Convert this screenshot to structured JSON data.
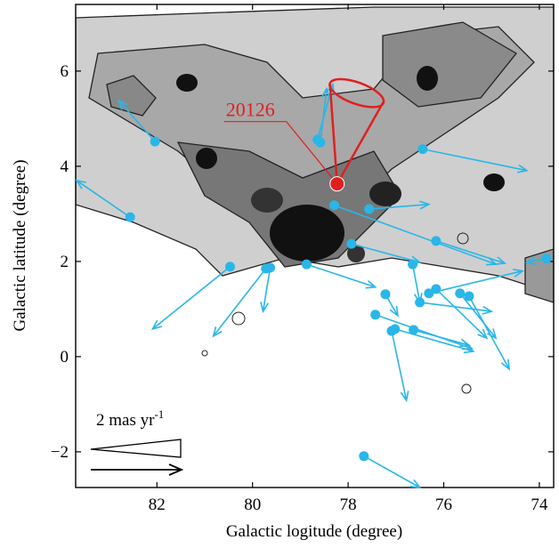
{
  "chart_data": {
    "type": "vector",
    "xlabel": "Galactic logitude (degree)",
    "ylabel": "Galactic latitude (degree)",
    "xlim": [
      83.7,
      73.7
    ],
    "ylim": [
      -2.75,
      7.4
    ],
    "xticks": [
      82,
      80,
      78,
      76,
      74
    ],
    "yticks": [
      {
        "value": -2,
        "label": "−2"
      },
      0,
      2,
      4,
      6
    ],
    "color": "#29b6e8",
    "series": [
      {
        "x": [
          82.04,
          82.56,
          80.47,
          79.72,
          79.63,
          78.64,
          78.58,
          78.87,
          78.29,
          77.93,
          77.56,
          76.44,
          76.16,
          76.65,
          77.22,
          77.43,
          77.09,
          77.02,
          76.63,
          76.5,
          76.16,
          75.47,
          75.66,
          76.31,
          73.85,
          77.67
        ],
        "y": [
          4.52,
          2.93,
          1.89,
          1.85,
          1.87,
          4.56,
          4.5,
          1.94,
          3.18,
          2.37,
          3.1,
          4.36,
          2.43,
          1.94,
          1.31,
          0.88,
          0.54,
          0.58,
          0.56,
          1.14,
          1.42,
          1.27,
          1.33,
          1.33,
          2.06,
          -2.09
        ],
        "x_end": [
          82.8,
          83.68,
          82.09,
          80.82,
          79.78,
          78.32,
          78.45,
          77.43,
          74.91,
          76.5,
          76.31,
          74.26,
          74.72,
          76.5,
          76.96,
          75.41,
          76.78,
          75.38,
          75.47,
          75.0,
          75.1,
          74.63,
          74.91,
          74.35,
          74.26,
          76.5
        ],
        "y_end": [
          5.38,
          3.7,
          0.58,
          0.43,
          0.95,
          5.72,
          5.63,
          1.46,
          1.94,
          1.98,
          3.2,
          3.91,
          1.96,
          1.14,
          0.86,
          0.17,
          -0.92,
          0.11,
          0.24,
          0.95,
          0.39,
          -0.26,
          0.39,
          1.8,
          1.98,
          -2.75
        ]
      }
    ],
    "highlight": {
      "label": "20126",
      "x": 78.23,
      "y": 3.63,
      "color": "#e02020"
    },
    "scale_label": {
      "text": "2 mas yr",
      "sup": "-1"
    }
  }
}
